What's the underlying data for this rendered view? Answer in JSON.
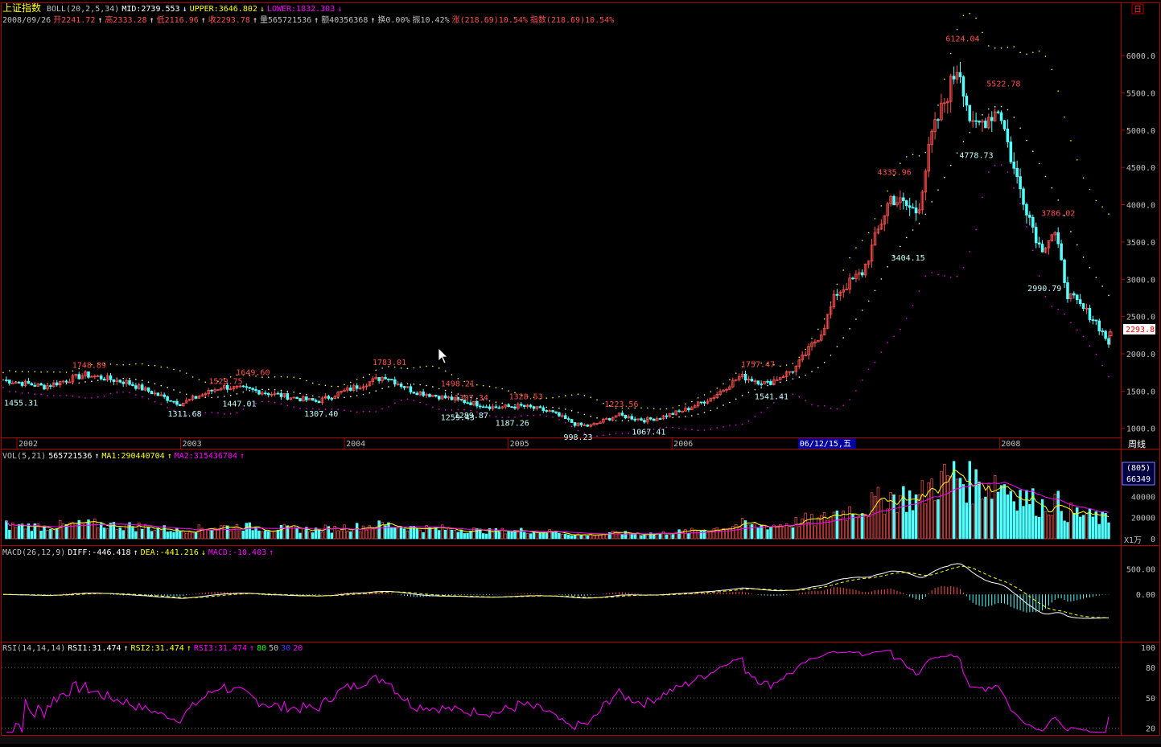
{
  "header": {
    "title": "上证指数",
    "boll_line": [
      {
        "text": "BOLL(20,2,5,34)",
        "color": "#c0c0c0"
      },
      {
        "text": "MID:2739.553",
        "color": "#ffffff"
      },
      {
        "text": "↓",
        "color": "#ffffff"
      },
      {
        "text": "UPPER:3646.802",
        "color": "#ffff00"
      },
      {
        "text": "↓",
        "color": "#ffff00"
      },
      {
        "text": "LOWER:1832.303",
        "color": "#ff00ff"
      },
      {
        "text": "↓",
        "color": "#ff00ff"
      }
    ],
    "quote_line": [
      {
        "text": "2008/09/26",
        "color": "#c0c0c0"
      },
      {
        "text": "开2241.72",
        "color": "#ff5050"
      },
      {
        "text": "↑",
        "color": "#ffffff"
      },
      {
        "text": "高2333.28",
        "color": "#ff5050"
      },
      {
        "text": "↑",
        "color": "#ffffff"
      },
      {
        "text": "低2116.96",
        "color": "#ff5050"
      },
      {
        "text": "↑",
        "color": "#ffffff"
      },
      {
        "text": "收2293.78",
        "color": "#ff5050"
      },
      {
        "text": "↑",
        "color": "#ffffff"
      },
      {
        "text": "量565721536",
        "color": "#c0c0c0"
      },
      {
        "text": "↑",
        "color": "#ffffff"
      },
      {
        "text": "额40356368",
        "color": "#c0c0c0"
      },
      {
        "text": "↑",
        "color": "#ffffff"
      },
      {
        "text": "换0.00%",
        "color": "#c0c0c0"
      },
      {
        "text": "振10.42%",
        "color": "#c0c0c0"
      },
      {
        "text": "涨(218.69)10.54%",
        "color": "#ff5050"
      },
      {
        "text": "指数(218.69)10.54%",
        "color": "#ff5050"
      }
    ],
    "close_box_symbol": "日",
    "period_label": "周线"
  },
  "chart_data": {
    "type": "candlestick",
    "axis": {
      "ylim": [
        900,
        6400
      ],
      "y_ticks": [
        "1000.0",
        "1500.0",
        "2000.0",
        "2500.0",
        "3000.0",
        "3500.0",
        "4000.0",
        "4500.0",
        "5000.0",
        "5500.0",
        "6000.0"
      ],
      "x_ticks": [
        {
          "label": "2002",
          "date": "2002-01"
        },
        {
          "label": "2003",
          "date": "2003-01"
        },
        {
          "label": "2004",
          "date": "2004-01"
        },
        {
          "label": "2005",
          "date": "2005-01"
        },
        {
          "label": "2006",
          "date": "2006-01"
        },
        {
          "label": "2008",
          "date": "2008-01"
        }
      ],
      "cursor_label": "06/12/15,五",
      "last_price_label": "2293.8",
      "x_range": [
        "2001-12",
        "2008-09"
      ]
    },
    "price_path": [
      [
        "2001-12",
        1650
      ],
      [
        "2002-03",
        1560
      ],
      [
        "2002-06",
        1720
      ],
      [
        "2002-09",
        1620
      ],
      [
        "2002-12",
        1400
      ],
      [
        "2003-01",
        1330
      ],
      [
        "2003-04",
        1560
      ],
      [
        "2003-06",
        1520
      ],
      [
        "2003-09",
        1420
      ],
      [
        "2003-11",
        1360
      ],
      [
        "2004-01",
        1500
      ],
      [
        "2004-04",
        1700
      ],
      [
        "2004-06",
        1500
      ],
      [
        "2004-09",
        1390
      ],
      [
        "2004-12",
        1280
      ],
      [
        "2005-02",
        1300
      ],
      [
        "2005-04",
        1230
      ],
      [
        "2005-06",
        1050
      ],
      [
        "2005-07",
        1030
      ],
      [
        "2005-09",
        1180
      ],
      [
        "2005-11",
        1110
      ],
      [
        "2005-12",
        1140
      ],
      [
        "2006-02",
        1250
      ],
      [
        "2006-04",
        1420
      ],
      [
        "2006-06",
        1700
      ],
      [
        "2006-08",
        1600
      ],
      [
        "2006-10",
        1800
      ],
      [
        "2006-12",
        2300
      ],
      [
        "2007-01",
        2800
      ],
      [
        "2007-03",
        3100
      ],
      [
        "2007-05",
        4100
      ],
      [
        "2007-07",
        3900
      ],
      [
        "2007-08",
        4900
      ],
      [
        "2007-10",
        5900
      ],
      [
        "2007-11",
        5000
      ],
      [
        "2008-01",
        5300
      ],
      [
        "2008-02",
        4500
      ],
      [
        "2008-04",
        3400
      ],
      [
        "2008-05",
        3650
      ],
      [
        "2008-06",
        2800
      ],
      [
        "2008-08",
        2450
      ],
      [
        "2008-09",
        2150
      ]
    ],
    "last_candle": {
      "open": 2241.72,
      "high": 2333.28,
      "low": 2116.96,
      "close": 2293.78
    },
    "annotations": [
      {
        "text": "1748.89",
        "date": "2002-06",
        "value": 1748.89,
        "kind": "high"
      },
      {
        "text": "1455.31",
        "date": "2002-01",
        "value": 1455.31,
        "kind": "low"
      },
      {
        "text": "1311.68",
        "date": "2003-01",
        "value": 1311.68,
        "kind": "low"
      },
      {
        "text": "1529.75",
        "date": "2003-04",
        "value": 1529.75,
        "kind": "high"
      },
      {
        "text": "1447.01",
        "date": "2003-05",
        "value": 1447.01,
        "kind": "low"
      },
      {
        "text": "1649.60",
        "date": "2003-06",
        "value": 1649.6,
        "kind": "high"
      },
      {
        "text": "1307.40",
        "date": "2003-11",
        "value": 1307.4,
        "kind": "low"
      },
      {
        "text": "1783.01",
        "date": "2004-04",
        "value": 1783.01,
        "kind": "high"
      },
      {
        "text": "1498.21",
        "date": "2004-09",
        "value": 1498.21,
        "kind": "high"
      },
      {
        "text": "1259.43",
        "date": "2004-09",
        "value": 1259.43,
        "kind": "low"
      },
      {
        "text": "1307.34",
        "date": "2004-10",
        "value": 1307.34,
        "kind": "high"
      },
      {
        "text": "1289.87",
        "date": "2004-10",
        "value": 1289.87,
        "kind": "low"
      },
      {
        "text": "1328.53",
        "date": "2005-02",
        "value": 1328.53,
        "kind": "high"
      },
      {
        "text": "1187.26",
        "date": "2005-01",
        "value": 1187.26,
        "kind": "low"
      },
      {
        "text": "998.23",
        "date": "2005-06",
        "value": 998.23,
        "kind": "low"
      },
      {
        "text": "1223.56",
        "date": "2005-09",
        "value": 1223.56,
        "kind": "high"
      },
      {
        "text": "1067.41",
        "date": "2005-11",
        "value": 1067.41,
        "kind": "low"
      },
      {
        "text": "1757.47",
        "date": "2006-07",
        "value": 1757.47,
        "kind": "high"
      },
      {
        "text": "1541.41",
        "date": "2006-08",
        "value": 1541.41,
        "kind": "low"
      },
      {
        "text": "4335.96",
        "date": "2007-05",
        "value": 4335.96,
        "kind": "high"
      },
      {
        "text": "3404.15",
        "date": "2007-06",
        "value": 3404.15,
        "kind": "low"
      },
      {
        "text": "6124.04",
        "date": "2007-10",
        "value": 6124.04,
        "kind": "high"
      },
      {
        "text": "4778.73",
        "date": "2007-11",
        "value": 4778.73,
        "kind": "low"
      },
      {
        "text": "5522.78",
        "date": "2008-01",
        "value": 5522.78,
        "kind": "high"
      },
      {
        "text": "3786.02",
        "date": "2008-05",
        "value": 3786.02,
        "kind": "high"
      },
      {
        "text": "2990.79",
        "date": "2008-04",
        "value": 2990.79,
        "kind": "low"
      }
    ]
  },
  "volume_panel": {
    "legend": [
      {
        "text": "VOL(5,21)",
        "color": "#c0c0c0"
      },
      {
        "text": "565721536",
        "color": "#ffffff"
      },
      {
        "text": "↑",
        "color": "#ffffff"
      },
      {
        "text": "MA1:290440704",
        "color": "#ffff00"
      },
      {
        "text": "↑",
        "color": "#ffff00"
      },
      {
        "text": "MA2:315436704",
        "color": "#ff00ff"
      },
      {
        "text": "↑",
        "color": "#ff00ff"
      }
    ],
    "y_ticks": [
      "60000",
      "40000",
      "20000",
      "0"
    ],
    "unit_label": "X1万",
    "info_box_top": "(805)",
    "info_box_bottom": "66349",
    "ylim": [
      0,
      70000
    ]
  },
  "macd_panel": {
    "legend": [
      {
        "text": "MACD(26,12,9)",
        "color": "#c0c0c0"
      },
      {
        "text": "DIFF:-446.418",
        "color": "#ffffff"
      },
      {
        "text": "↑",
        "color": "#ffffff"
      },
      {
        "text": "DEA:-441.216",
        "color": "#ffff00"
      },
      {
        "text": "↓",
        "color": "#ffff00"
      },
      {
        "text": "MACD:-10.403",
        "color": "#ff00ff"
      },
      {
        "text": "↑",
        "color": "#ff00ff"
      }
    ],
    "y_ticks": [
      "500.00",
      "0.00"
    ],
    "ylim": [
      -900,
      700
    ]
  },
  "rsi_panel": {
    "legend": [
      {
        "text": "RSI(14,14,14)",
        "color": "#c0c0c0"
      },
      {
        "text": "RSI1:31.474",
        "color": "#ffffff"
      },
      {
        "text": "↑",
        "color": "#ffffff"
      },
      {
        "text": "RSI2:31.474",
        "color": "#ffff00"
      },
      {
        "text": "↑",
        "color": "#ffff00"
      },
      {
        "text": "RSI3:31.474",
        "color": "#ff00ff"
      },
      {
        "text": "↑",
        "color": "#ff00ff"
      },
      {
        "text": "80",
        "color": "#00ff00"
      },
      {
        "text": "50",
        "color": "#c0c0c0"
      },
      {
        "text": "30",
        "color": "#4040ff"
      },
      {
        "text": "20",
        "color": "#ff00ff"
      }
    ],
    "y_ticks": [
      "100",
      "80",
      "50",
      "20"
    ],
    "ylim": [
      15,
      100
    ],
    "last_value": 31.474
  },
  "colors": {
    "up": "#ff5050",
    "down": "#54ffff",
    "panel_border": "#b00000",
    "axis_text": "#c0c0c0",
    "rsi": "#ff00ff",
    "mid": "#ffffff",
    "upper": "#ffff00",
    "lower": "#ff00ff"
  }
}
